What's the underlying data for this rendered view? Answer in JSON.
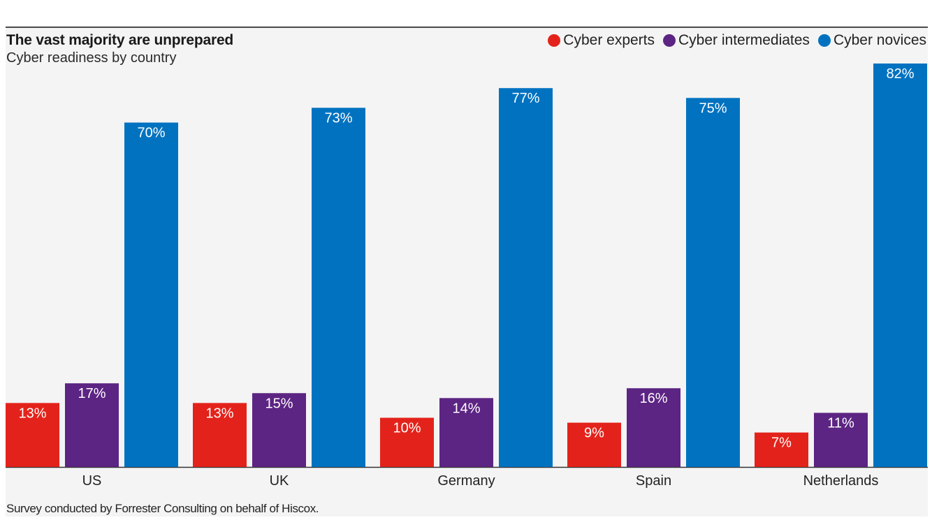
{
  "chart_data": {
    "type": "bar",
    "title": "The vast majority are unprepared",
    "subtitle": "Cyber readiness by country",
    "categories": [
      "US",
      "UK",
      "Germany",
      "Spain",
      "Netherlands"
    ],
    "series": [
      {
        "name": "Cyber experts",
        "color": "#e3231b",
        "values": [
          13,
          13,
          10,
          9,
          7
        ],
        "labels": [
          "13%",
          "13%",
          "10%",
          "9%",
          "7%"
        ]
      },
      {
        "name": "Cyber intermediates",
        "color": "#5c2483",
        "values": [
          17,
          15,
          14,
          16,
          11
        ],
        "labels": [
          "17%",
          "15%",
          "14%",
          "16%",
          "11%"
        ]
      },
      {
        "name": "Cyber novices",
        "color": "#0072c0",
        "values": [
          70,
          73,
          77,
          75,
          82
        ],
        "labels": [
          "70%",
          "73%",
          "77%",
          "75%",
          "82%"
        ]
      }
    ],
    "ylim": [
      0,
      82
    ],
    "xlabel": "",
    "ylabel": "",
    "legend_position": "top-right",
    "grid": false
  },
  "legend": {
    "items": [
      {
        "label": "Cyber experts",
        "color": "#e3231b"
      },
      {
        "label": "Cyber intermediates",
        "color": "#5c2483"
      },
      {
        "label": "Cyber novices",
        "color": "#0072c0"
      }
    ]
  },
  "source_note": "Survey conducted by Forrester Consulting on behalf of Hiscox."
}
